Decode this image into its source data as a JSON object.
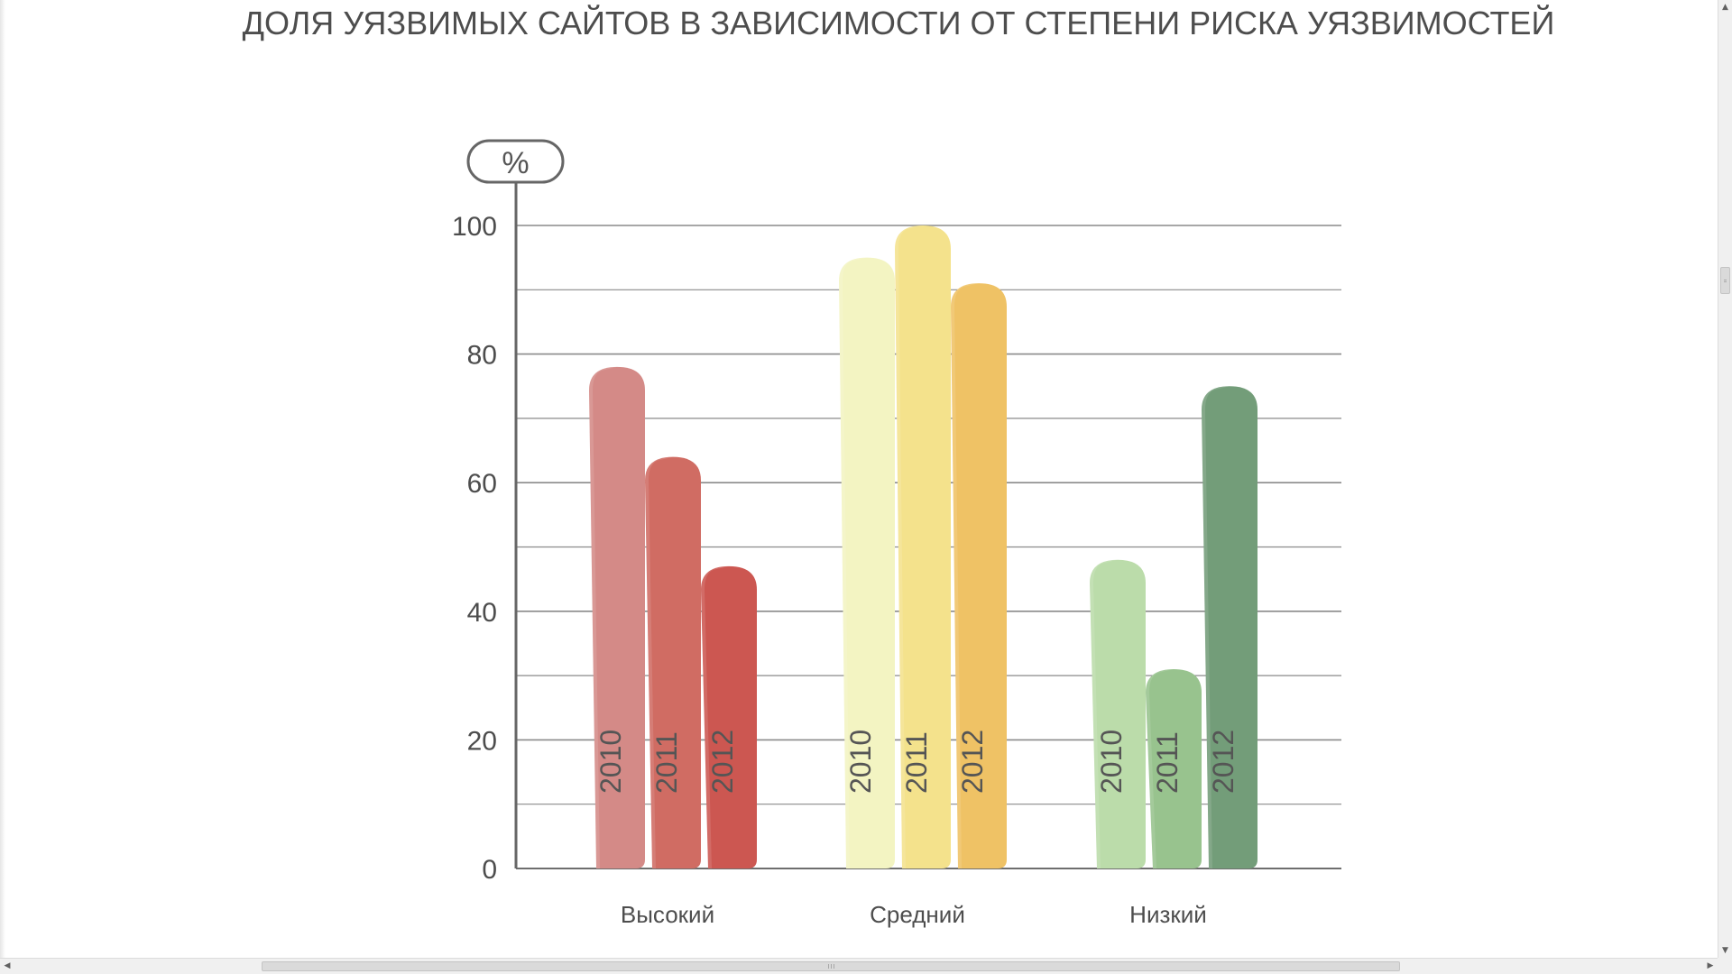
{
  "chart_data": {
    "type": "bar",
    "title": "ДОЛЯ УЯЗВИМЫХ САЙТОВ В ЗАВИСИМОСТИ ОТ СТЕПЕНИ РИСКА УЯЗВИМОСТЕЙ",
    "ylabel": "%",
    "xlabel": "",
    "ylim": [
      0,
      100
    ],
    "yticks": [
      "0",
      "20",
      "40",
      "60",
      "80",
      "100"
    ],
    "grid": true,
    "categories": [
      "Высокий",
      "Средний",
      "Низкий"
    ],
    "series": [
      {
        "name": "2010",
        "values": [
          78,
          95,
          48
        ]
      },
      {
        "name": "2011",
        "values": [
          64,
          100,
          31
        ]
      },
      {
        "name": "2012",
        "values": [
          47,
          91,
          75
        ]
      }
    ],
    "colors": [
      [
        "#d48a87",
        "#d06c63",
        "#cc5751"
      ],
      [
        "#f3f4c2",
        "#f4e28c",
        "#efc265"
      ],
      [
        "#bbdcaa",
        "#98c38e",
        "#739d79"
      ]
    ]
  },
  "scrollbars": {
    "up_arrow": "▲",
    "down_arrow": "▼",
    "left_arrow": "◀",
    "right_arrow": "▶"
  }
}
